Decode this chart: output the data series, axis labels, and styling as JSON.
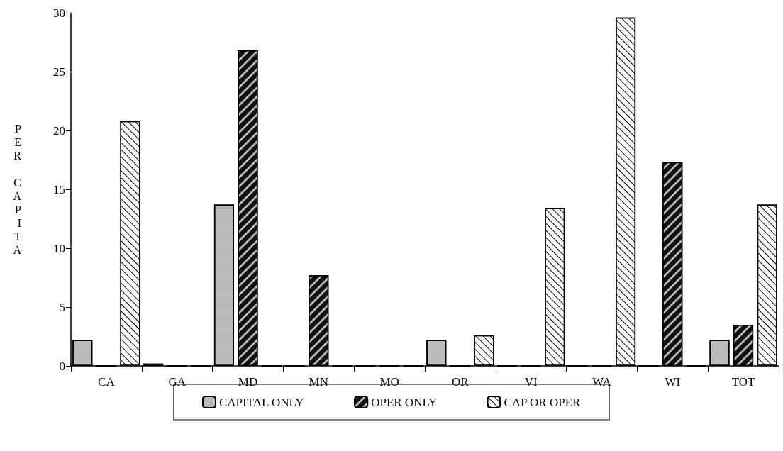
{
  "chart_data": {
    "type": "bar",
    "ylabel": "PER CAPITA",
    "categories": [
      "CA",
      "GA",
      "MD",
      "MN",
      "MO",
      "OR",
      "VI",
      "WA",
      "WI",
      "TOT"
    ],
    "series": [
      {
        "name": "CAPITAL ONLY",
        "color": "#bdbdbd",
        "values": [
          2.2,
          0.2,
          13.7,
          0,
          0,
          2.2,
          0,
          0,
          0,
          2.2
        ]
      },
      {
        "name": "OPER ONLY",
        "color": "#111111",
        "values": [
          0,
          0,
          26.8,
          7.7,
          0,
          0,
          0,
          0,
          17.3,
          3.5
        ]
      },
      {
        "name": "CAP OR OPER",
        "color": "#ffffff",
        "values": [
          20.8,
          0,
          0,
          0,
          0,
          2.6,
          13.4,
          29.6,
          0,
          13.7
        ]
      }
    ],
    "ylim": [
      0,
      30
    ],
    "yticks": [
      0,
      5,
      10,
      15,
      20,
      25,
      30
    ],
    "grid": false,
    "legend": "bottom"
  }
}
